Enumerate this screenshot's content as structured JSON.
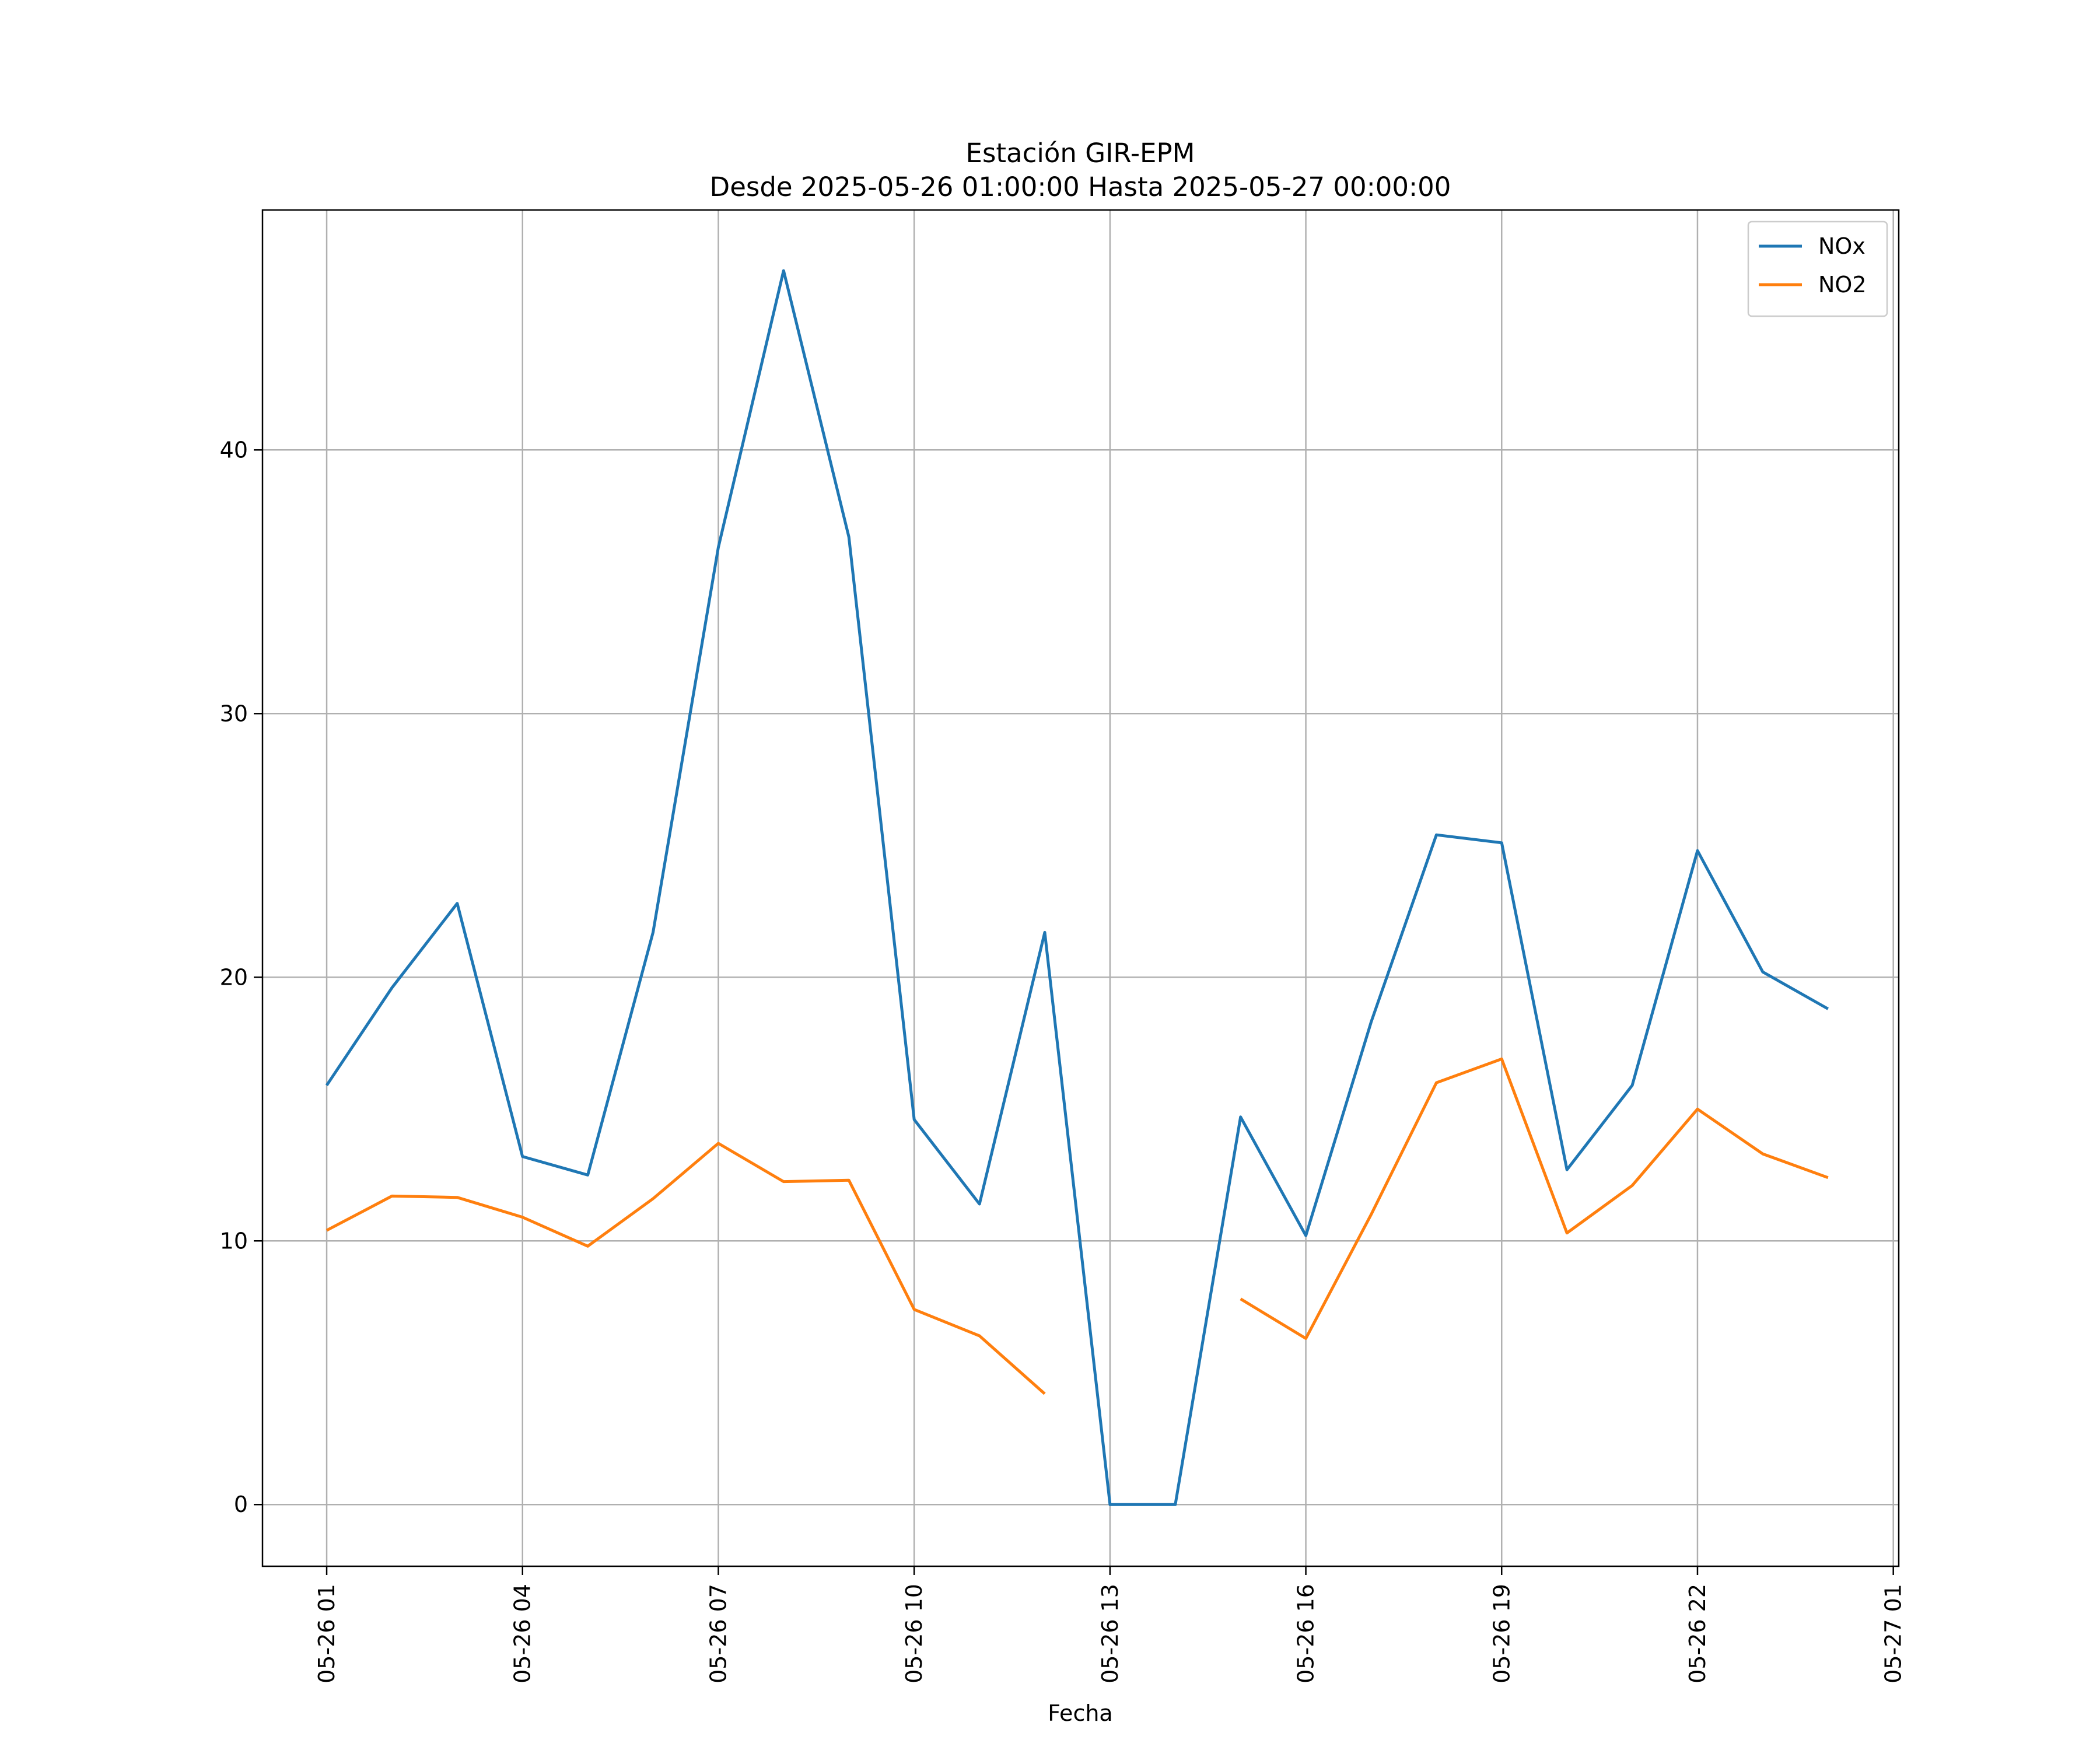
{
  "chart_data": {
    "type": "line",
    "title": "Estación GIR-EPM",
    "subtitle": "Desde 2025-05-26 01:00:00 Hasta 2025-05-27 00:00:00",
    "xlabel": "Fecha",
    "ylabel": "",
    "x": [
      "2025-05-26 01:00",
      "2025-05-26 02:00",
      "2025-05-26 03:00",
      "2025-05-26 04:00",
      "2025-05-26 05:00",
      "2025-05-26 06:00",
      "2025-05-26 07:00",
      "2025-05-26 08:00",
      "2025-05-26 09:00",
      "2025-05-26 10:00",
      "2025-05-26 11:00",
      "2025-05-26 12:00",
      "2025-05-26 13:00",
      "2025-05-26 14:00",
      "2025-05-26 15:00",
      "2025-05-26 16:00",
      "2025-05-26 17:00",
      "2025-05-26 18:00",
      "2025-05-26 19:00",
      "2025-05-26 20:00",
      "2025-05-26 21:00",
      "2025-05-26 22:00",
      "2025-05-26 23:00",
      "2025-05-27 00:00"
    ],
    "series": [
      {
        "name": "NOx",
        "color": "#1f77b4",
        "values": [
          15.9,
          19.6,
          22.8,
          13.2,
          12.5,
          21.7,
          36.3,
          46.8,
          36.7,
          14.6,
          11.4,
          21.7,
          0.0,
          0.0,
          14.7,
          10.2,
          18.3,
          25.4,
          25.1,
          12.7,
          15.9,
          24.8,
          20.2,
          18.8
        ]
      },
      {
        "name": "NO2",
        "color": "#ff7f0e",
        "values": [
          10.4,
          11.7,
          11.65,
          10.9,
          9.8,
          11.6,
          13.7,
          12.25,
          12.3,
          7.4,
          6.4,
          4.2,
          null,
          null,
          7.8,
          6.3,
          11.0,
          16.0,
          16.9,
          10.3,
          12.1,
          15.0,
          13.3,
          12.4
        ]
      }
    ],
    "xticks": [
      {
        "label": "05-26 01",
        "x": "2025-05-26 01:00"
      },
      {
        "label": "05-26 04",
        "x": "2025-05-26 04:00"
      },
      {
        "label": "05-26 07",
        "x": "2025-05-26 07:00"
      },
      {
        "label": "05-26 10",
        "x": "2025-05-26 10:00"
      },
      {
        "label": "05-26 13",
        "x": "2025-05-26 13:00"
      },
      {
        "label": "05-26 16",
        "x": "2025-05-26 16:00"
      },
      {
        "label": "05-26 19",
        "x": "2025-05-26 19:00"
      },
      {
        "label": "05-26 22",
        "x": "2025-05-26 22:00"
      },
      {
        "label": "05-27 01",
        "x": "2025-05-27 01:00"
      }
    ],
    "yticks": [
      0,
      10,
      20,
      30,
      40
    ],
    "xlim": [
      "2025-05-26 00:01",
      "2025-05-27 01:05"
    ],
    "ylim": [
      -2.34,
      49.1
    ],
    "grid": true,
    "legend_position": "top-right"
  }
}
